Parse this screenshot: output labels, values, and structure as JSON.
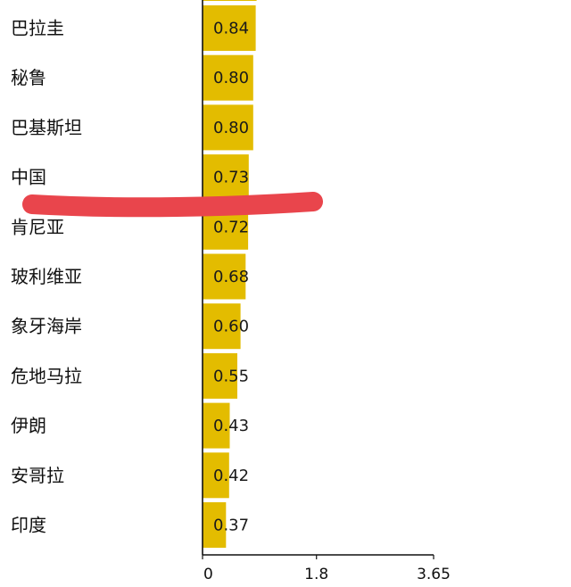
{
  "chart_data": {
    "type": "bar",
    "orientation": "horizontal",
    "categories": [
      "巴拉圭",
      "秘鲁",
      "巴基斯坦",
      "中国",
      "肯尼亚",
      "玻利维亚",
      "象牙海岸",
      "危地马拉",
      "伊朗",
      "安哥拉",
      "印度"
    ],
    "values": [
      0.84,
      0.8,
      0.8,
      0.73,
      0.72,
      0.68,
      0.6,
      0.55,
      0.43,
      0.42,
      0.37
    ],
    "value_labels": [
      "0.84",
      "0.80",
      "0.80",
      "0.73",
      "0.72",
      "0.68",
      "0.60",
      "0.55",
      "0.43",
      "0.42",
      "0.37"
    ],
    "xticks": [
      "0",
      "1.8",
      "3.65"
    ],
    "xtick_values": [
      0,
      1.8,
      3.65
    ],
    "xlim": [
      0,
      3.65
    ],
    "title": "",
    "xlabel": "",
    "ylabel": "",
    "grid": false,
    "legend": "none",
    "bar_color": "#e3bc00",
    "annotation_color": "#e9454c",
    "annotation_shape": "red-highlighter-stroke"
  }
}
